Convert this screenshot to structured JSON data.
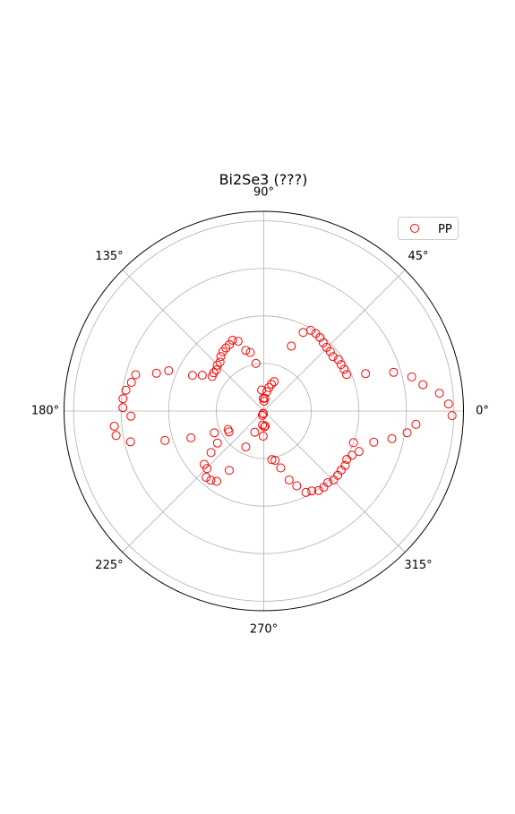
{
  "chart_data": {
    "type": "scatter",
    "projection": "polar",
    "title": "Bi2Se3 (???)",
    "angle_ticks": [
      "0°",
      "45°",
      "90°",
      "135°",
      "180°",
      "225°",
      "270°",
      "315°"
    ],
    "radial_ticks": [
      0.25,
      0.5,
      0.75,
      1.0
    ],
    "rlim": [
      0,
      1.05
    ],
    "grid": true,
    "legend": {
      "location": "upper right",
      "entries": [
        "PP"
      ]
    },
    "marker": {
      "shape": "open-circle",
      "color": "#ff0000"
    },
    "series": [
      {
        "name": "PP",
        "theta_deg": [
          -1.4,
          2.2,
          5.8,
          9.4,
          13.0,
          16.6,
          20.2,
          23.8,
          27.4,
          31.0,
          34.6,
          38.2,
          41.8,
          45.4,
          49.0,
          52.6,
          56.2,
          59.8,
          63.4,
          67.0,
          70.6,
          74.2,
          77.8,
          81.4,
          85.0,
          88.6,
          92.2,
          95.8,
          99.4,
          103.0,
          106.6,
          110.2,
          113.8,
          117.4,
          121.0,
          124.6,
          128.2,
          131.8,
          135.4,
          139.0,
          142.6,
          146.2,
          149.8,
          153.4,
          157.0,
          160.6,
          164.2,
          167.8,
          171.4,
          175.0,
          178.6,
          182.2,
          185.8,
          189.4,
          193.0,
          196.6,
          200.2,
          203.8,
          207.4,
          211.0,
          214.6,
          218.2,
          221.8,
          225.4,
          229.0,
          232.6,
          236.2,
          239.8,
          243.4,
          247.0,
          250.6,
          254.2,
          257.8,
          261.4,
          265.0,
          268.6,
          272.2,
          275.8,
          279.4,
          283.0,
          286.6,
          290.2,
          293.8,
          297.4,
          301.0,
          304.6,
          308.2,
          311.8,
          315.4,
          319.0,
          322.6,
          326.2,
          329.8,
          333.4,
          337.0,
          340.6,
          344.2,
          347.8,
          351.4,
          355.0
        ],
        "r": [
          0.99,
          0.972,
          0.928,
          0.848,
          0.798,
          0.712,
          0.57,
          0.476,
          0.476,
          0.474,
          0.476,
          0.463,
          0.469,
          0.47,
          0.476,
          0.487,
          0.491,
          0.491,
          0.462,
          0.371,
          0.164,
          0.147,
          0.126,
          0.103,
          0.067,
          0.052,
          0.067,
          0.111,
          0.254,
          0.316,
          0.333,
          0.391,
          0.407,
          0.393,
          0.387,
          0.379,
          0.365,
          0.345,
          0.343,
          0.33,
          0.331,
          0.327,
          0.374,
          0.419,
          0.543,
          0.598,
          0.7,
          0.712,
          0.733,
          0.743,
          0.741,
          0.699,
          0.79,
          0.787,
          0.719,
          0.542,
          0.408,
          0.284,
          0.211,
          0.213,
          0.296,
          0.353,
          0.42,
          0.425,
          0.462,
          0.458,
          0.445,
          0.361,
          0.211,
          0.121,
          0.024,
          0.013,
          0.014,
          0.014,
          0.074,
          0.132,
          0.083,
          0.078,
          0.259,
          0.266,
          0.312,
          0.386,
          0.43,
          0.482,
          0.49,
          0.508,
          0.51,
          0.505,
          0.516,
          0.515,
          0.512,
          0.515,
          0.505,
          0.519,
          0.544,
          0.5,
          0.601,
          0.689,
          0.762,
          0.803
        ]
      }
    ]
  }
}
